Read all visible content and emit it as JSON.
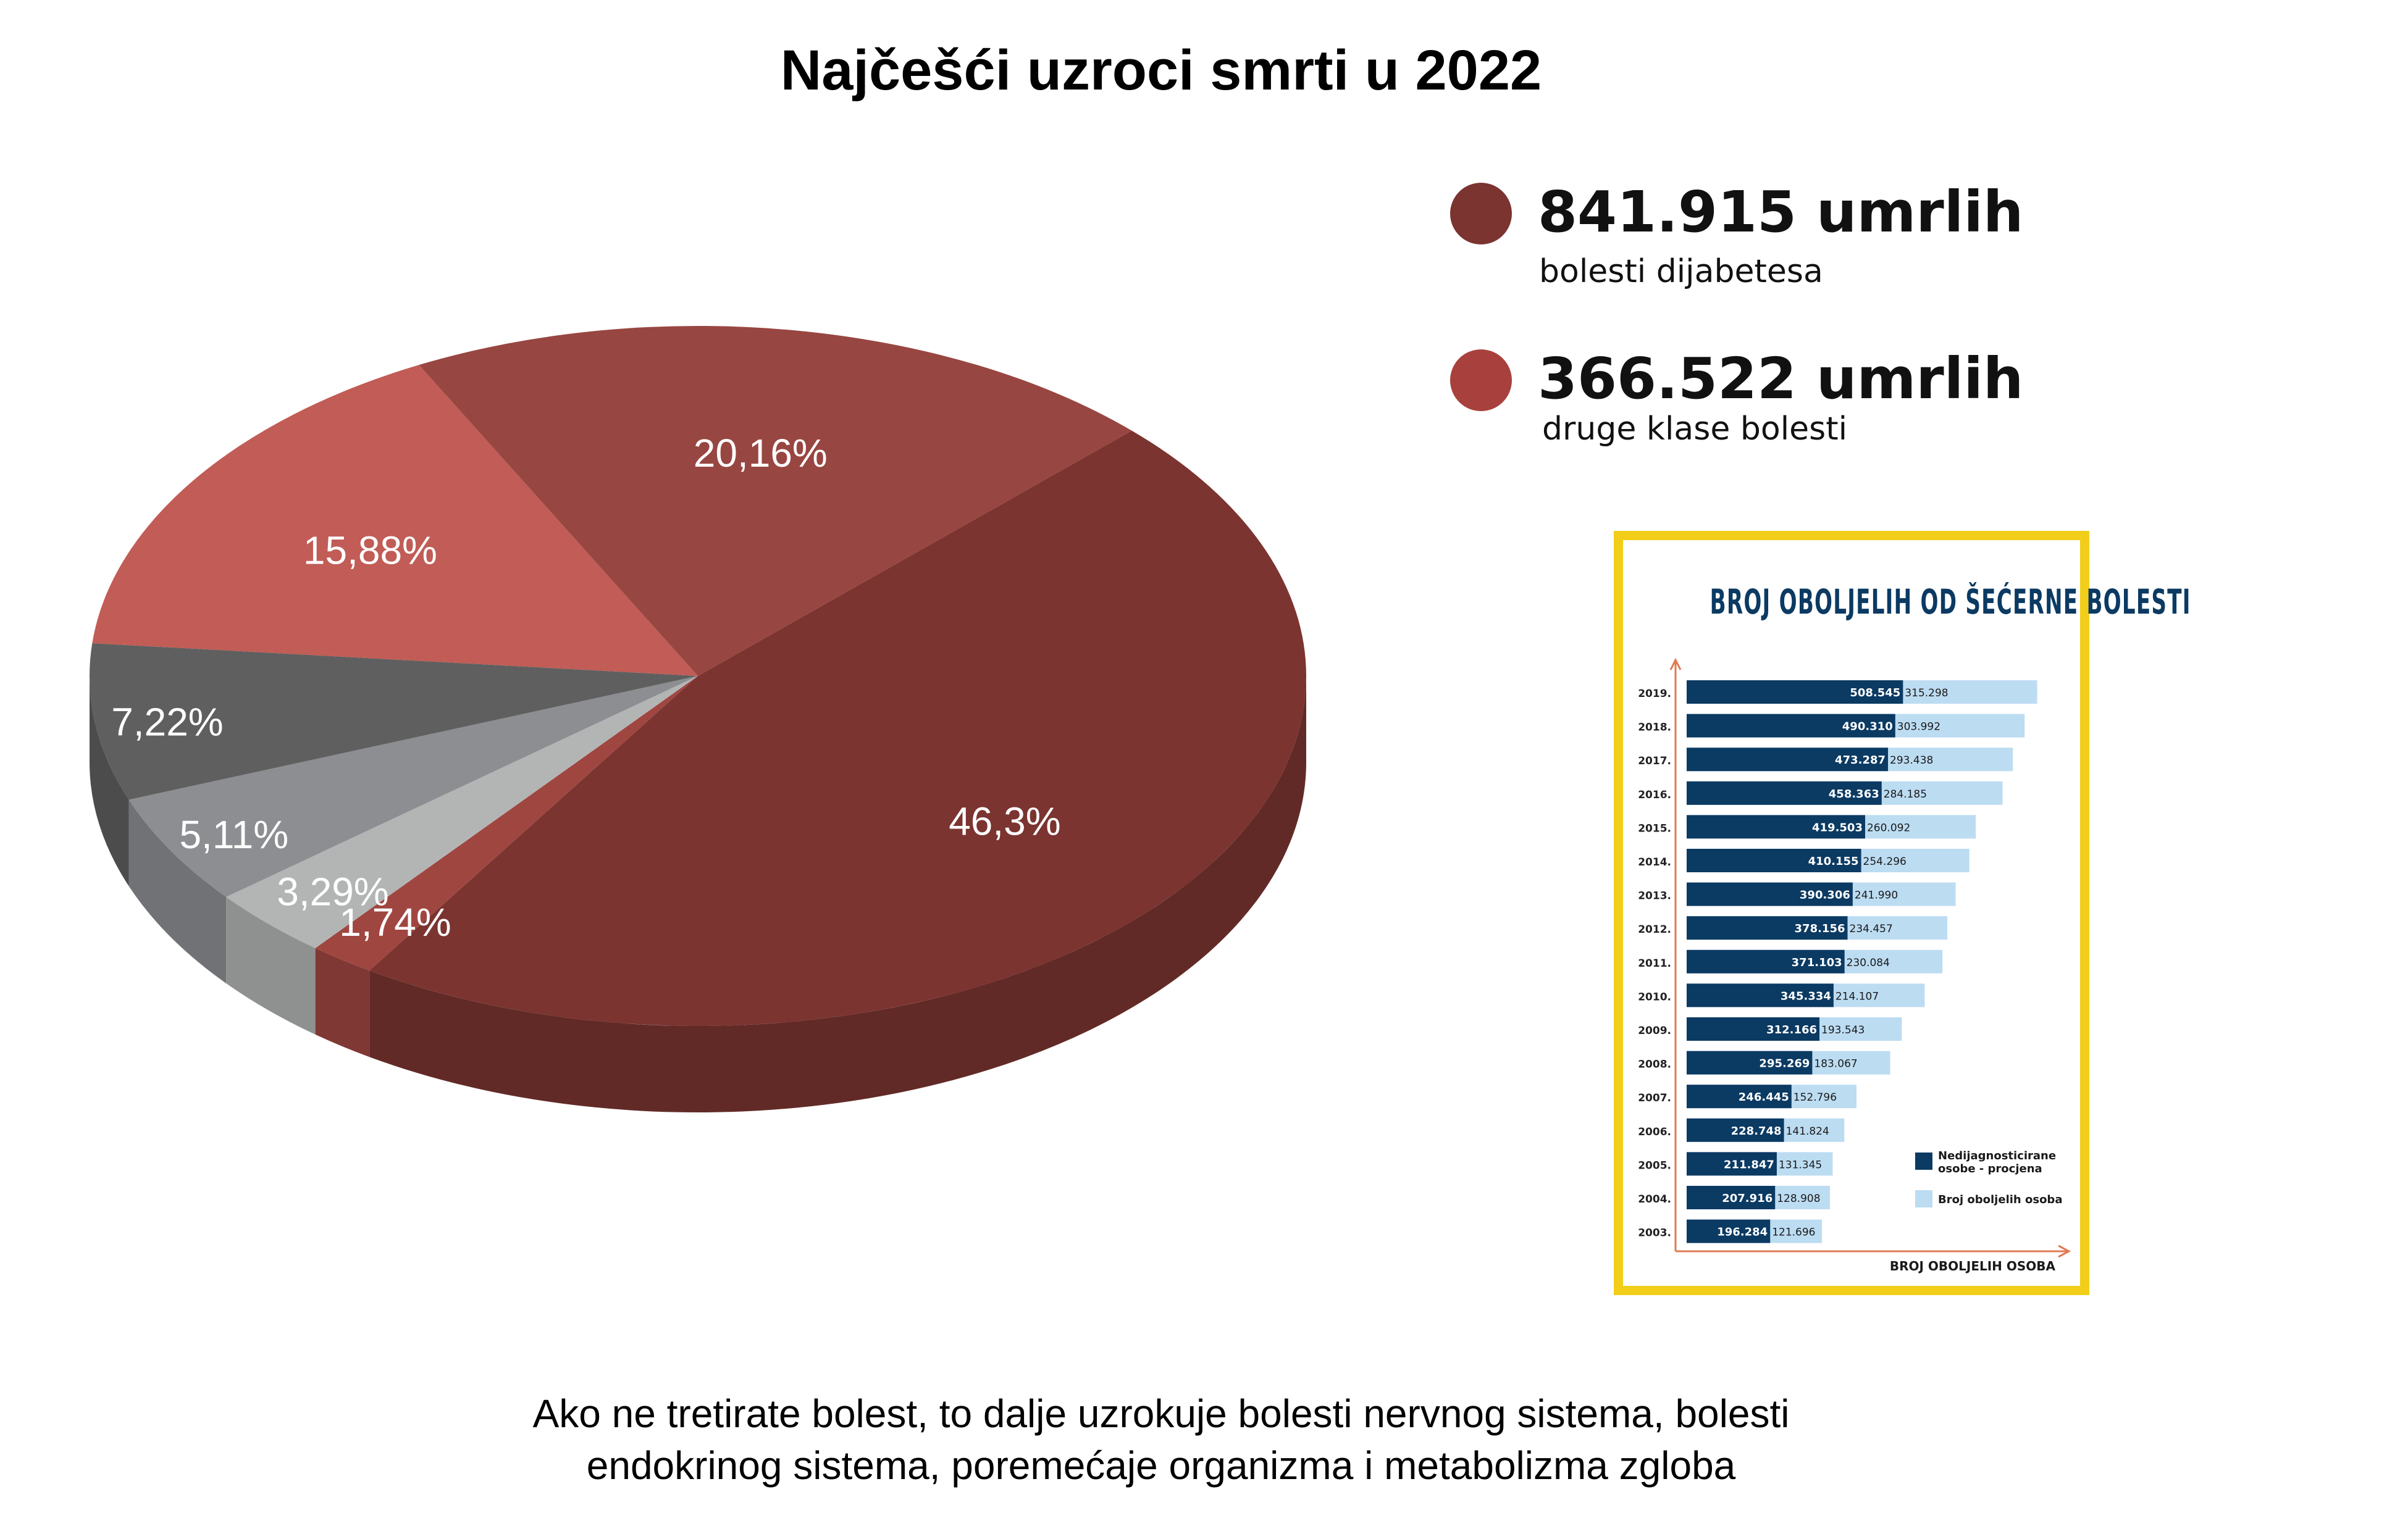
{
  "title": "Najčešći uzroci smrti u 2022",
  "chart_data": [
    {
      "type": "pie",
      "title": "Najčešći uzroci smrti u 2022",
      "slices": [
        {
          "label": "46,3%",
          "value": 46.3,
          "color": "#7b3430"
        },
        {
          "label": "1,74%",
          "value": 1.74,
          "color": "#a04641"
        },
        {
          "label": "3,29%",
          "value": 3.29,
          "color": "#b3b5b5"
        },
        {
          "label": "5,11%",
          "value": 5.11,
          "color": "#8c8e92"
        },
        {
          "label": "7,22%",
          "value": 7.22,
          "color": "#5f5f5f"
        },
        {
          "label": "15,88%",
          "value": 15.88,
          "color": "#c15c56"
        },
        {
          "label": "20,16%",
          "value": 20.16,
          "color": "#984641"
        }
      ]
    },
    {
      "type": "bar",
      "title": "BROJ OBOLJELIH OD ŠEĆERNE BOLESTI",
      "xlabel": "BROJ OBOLJELIH OSOBA",
      "categories": [
        "2019.",
        "2018.",
        "2017.",
        "2016.",
        "2015.",
        "2014.",
        "2013.",
        "2012.",
        "2011.",
        "2010.",
        "2009.",
        "2008.",
        "2007.",
        "2006.",
        "2005.",
        "2004.",
        "2003."
      ],
      "series": [
        {
          "name": "Nedijagnosticirane osobe - procjena",
          "color": "#0b3a63",
          "values": [
            508545,
            490310,
            473287,
            458363,
            419503,
            410155,
            390306,
            378156,
            371103,
            345334,
            312166,
            295269,
            246445,
            228748,
            211847,
            207916,
            196284
          ],
          "labels": [
            "508.545",
            "490.310",
            "473.287",
            "458.363",
            "419.503",
            "410.155",
            "390.306",
            "378.156",
            "371.103",
            "345.334",
            "312.166",
            "295.269",
            "246.445",
            "228.748",
            "211.847",
            "207.916",
            "196.284"
          ]
        },
        {
          "name": "Broj oboljelih osoba",
          "color": "#bcdcf2",
          "values": [
            315298,
            303992,
            293438,
            284185,
            260092,
            254296,
            241990,
            234457,
            230084,
            214107,
            193543,
            183067,
            152796,
            141824,
            131345,
            128908,
            121696
          ],
          "labels": [
            "315.298",
            "303.992",
            "293.438",
            "284.185",
            "260.092",
            "254.296",
            "241.990",
            "234.457",
            "230.084",
            "214.107",
            "193.543",
            "183.067",
            "152.796",
            "141.824",
            "131.345",
            "128.908",
            "121.696"
          ]
        }
      ]
    }
  ],
  "legend": [
    {
      "value": "841.915 umrlih",
      "sub": "bolesti dijabetesa",
      "color": "#7b3430"
    },
    {
      "value": "366.522 umrlih",
      "sub": "druge klase bolesti",
      "color": "#a8413d"
    }
  ],
  "inset": {
    "title": "BROJ OBOLJELIH OD ŠEĆERNE BOLESTI",
    "axis_label": "BROJ OBOLJELIH OSOBA",
    "legend_undiag": "Nedijagnosticirane",
    "legend_undiag2": "osobe - procjena",
    "legend_diag": "Broj oboljelih osoba"
  },
  "caption_line1": "Ako ne tretirate bolest, to dalje uzrokuje bolesti nervnog sistema, bolesti",
  "caption_line2": "endokrinog sistema, poremećaje organizma i metabolizma zgloba"
}
